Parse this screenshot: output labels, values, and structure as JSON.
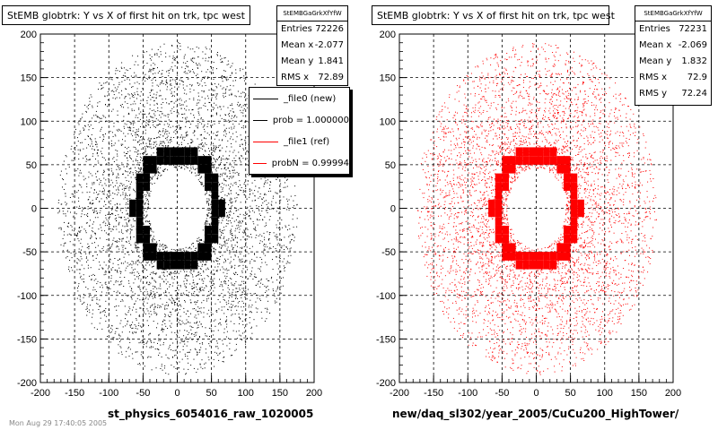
{
  "colors": {
    "black": "#000000",
    "red": "#ff0000"
  },
  "footer_text": "Mon Aug 29 17:40:05 2005",
  "chart_data": [
    {
      "type": "scatter",
      "title": "StEMB globtrk: Y vs X of first hit on trk, tpc west",
      "xlabel": "st_physics_6054016_raw_1020005",
      "ylabel": "",
      "xlim": [
        -200,
        200
      ],
      "ylim": [
        -200,
        200
      ],
      "xticks": [
        -200,
        -150,
        -100,
        -50,
        0,
        50,
        100,
        150,
        200
      ],
      "yticks": [
        -200,
        -150,
        -100,
        -50,
        0,
        50,
        100,
        150,
        200
      ],
      "grid": true,
      "color": "#000000",
      "stats": {
        "name": "StEMBGaGrkXfYfW",
        "rows": [
          {
            "label": "Entries",
            "value": "72226"
          },
          {
            "label": "Mean x",
            "value": "-2.077"
          },
          {
            "label": "Mean y",
            "value": "1.841"
          },
          {
            "label": "RMS x",
            "value": "72.89"
          }
        ]
      },
      "legend": {
        "placement": "top-right",
        "entries": [
          {
            "label": "_file0 (new)",
            "color": "#000000"
          },
          {
            "label": "prob = 1.000000",
            "color": "#000000"
          },
          {
            "label": "_file1 (ref)",
            "color": "#ff0000"
          },
          {
            "label": "probN = 0.99994",
            "color": "#ff0000"
          }
        ]
      }
    },
    {
      "type": "scatter",
      "title": "StEMB globtrk: Y vs X of first hit on trk, tpc west",
      "xlabel": "new/daq_sl302/year_2005/CuCu200_HighTower/",
      "ylabel": "",
      "xlim": [
        -200,
        200
      ],
      "ylim": [
        -200,
        200
      ],
      "xticks": [
        -200,
        -150,
        -100,
        -50,
        0,
        50,
        100,
        150,
        200
      ],
      "yticks": [
        -200,
        -150,
        -100,
        -50,
        0,
        50,
        100,
        150,
        200
      ],
      "grid": true,
      "color": "#ff0000",
      "stats": {
        "name": "StEMBGaGrkXfYfW",
        "rows": [
          {
            "label": "Entries",
            "value": "72231"
          },
          {
            "label": "Mean x",
            "value": "-2.069"
          },
          {
            "label": "Mean y",
            "value": "1.832"
          },
          {
            "label": "RMS x",
            "value": "72.9"
          },
          {
            "label": "RMS y",
            "value": "72.24"
          }
        ]
      }
    }
  ]
}
